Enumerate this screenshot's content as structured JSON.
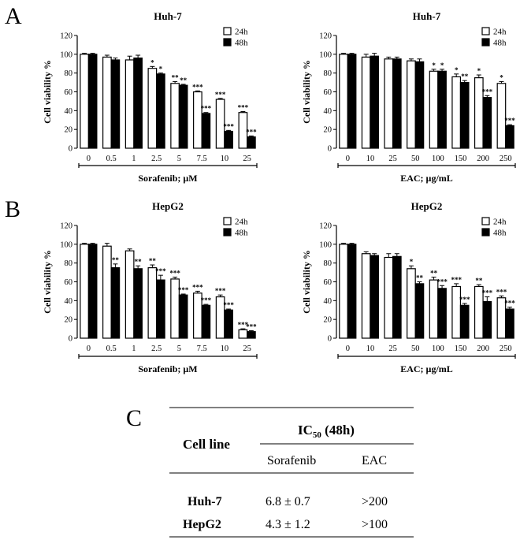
{
  "panels": {
    "A": "A",
    "B": "B",
    "C": "C"
  },
  "colors": {
    "h24": "#ffffff",
    "h48": "#000000",
    "axis": "#000000"
  },
  "chart_data": [
    {
      "id": "a-left",
      "type": "bar",
      "title": "Huh-7",
      "xlabel": "Sorafenib; µM",
      "ylabel": "Cell viability %",
      "ylim": [
        0,
        120
      ],
      "yticks": [
        "0",
        "20",
        "40",
        "60",
        "80",
        "100",
        "120"
      ],
      "legend": [
        "24h",
        "48h"
      ],
      "legend_position": "top-right",
      "categories": [
        "0",
        "0.5",
        "1",
        "2.5",
        "5",
        "7.5",
        "10",
        "25"
      ],
      "series": [
        {
          "name": "24h",
          "values": [
            100,
            97,
            94,
            85,
            69,
            60,
            52,
            38
          ],
          "errors": [
            1,
            2,
            4,
            2,
            2,
            1,
            1,
            1
          ],
          "sig": [
            "",
            "",
            "",
            "*",
            "**",
            "***",
            "***",
            "***"
          ]
        },
        {
          "name": "48h",
          "values": [
            100,
            94,
            96,
            79,
            67,
            37,
            18,
            12
          ],
          "errors": [
            1,
            2,
            3,
            1,
            1,
            1,
            1,
            1
          ],
          "sig": [
            "",
            "",
            "",
            "*",
            "**",
            "***",
            "***",
            "***"
          ]
        }
      ]
    },
    {
      "id": "a-right",
      "type": "bar",
      "title": "Huh-7",
      "xlabel": "EAC; µg/mL",
      "ylabel": "Cell viability %",
      "ylim": [
        0,
        120
      ],
      "yticks": [
        "0",
        "20",
        "40",
        "60",
        "80",
        "100",
        "120"
      ],
      "legend": [
        "24h",
        "48h"
      ],
      "legend_position": "top-right",
      "categories": [
        "0",
        "10",
        "25",
        "50",
        "100",
        "150",
        "200",
        "250"
      ],
      "series": [
        {
          "name": "24h",
          "values": [
            100,
            97,
            95,
            93,
            82,
            76,
            75,
            69
          ],
          "errors": [
            1,
            3,
            2,
            2,
            2,
            3,
            3,
            2
          ],
          "sig": [
            "",
            "",
            "",
            "",
            "*",
            "*",
            "*",
            "*"
          ]
        },
        {
          "name": "48h",
          "values": [
            100,
            98,
            95,
            92,
            82,
            70,
            54,
            24
          ],
          "errors": [
            1,
            3,
            2,
            3,
            2,
            2,
            2,
            1
          ],
          "sig": [
            "",
            "",
            "",
            "",
            "*",
            "**",
            "***",
            "***"
          ]
        }
      ]
    },
    {
      "id": "b-left",
      "type": "bar",
      "title": "HepG2",
      "xlabel": "Sorafenib; µM",
      "ylabel": "Cell viability %",
      "ylim": [
        0,
        120
      ],
      "yticks": [
        "0",
        "20",
        "40",
        "60",
        "80",
        "100",
        "120"
      ],
      "legend": [
        "24h",
        "48h"
      ],
      "legend_position": "top-right",
      "categories": [
        "0",
        "0.5",
        "1",
        "2.5",
        "5",
        "7.5",
        "10",
        "25"
      ],
      "series": [
        {
          "name": "24h",
          "values": [
            100,
            98,
            93,
            75,
            63,
            48,
            44,
            9
          ],
          "errors": [
            1,
            3,
            2,
            3,
            2,
            2,
            2,
            1
          ],
          "sig": [
            "",
            "",
            "",
            "**",
            "***",
            "***",
            "***",
            "***"
          ]
        },
        {
          "name": "48h",
          "values": [
            100,
            75,
            74,
            62,
            46,
            35,
            30,
            7
          ],
          "errors": [
            1,
            4,
            3,
            5,
            1,
            1,
            1,
            1
          ],
          "sig": [
            "",
            "**",
            "**",
            "***",
            "***",
            "***",
            "***",
            "***"
          ]
        }
      ]
    },
    {
      "id": "b-right",
      "type": "bar",
      "title": "HepG2",
      "xlabel": "EAC; µg/mL",
      "ylabel": "Cell viability %",
      "ylim": [
        0,
        120
      ],
      "yticks": [
        "0",
        "20",
        "40",
        "60",
        "80",
        "100",
        "120"
      ],
      "legend": [
        "24h",
        "48h"
      ],
      "legend_position": "top-right",
      "categories": [
        "0",
        "10",
        "25",
        "50",
        "100",
        "150",
        "200",
        "250"
      ],
      "series": [
        {
          "name": "24h",
          "values": [
            100,
            90,
            86,
            74,
            62,
            55,
            55,
            43
          ],
          "errors": [
            1,
            2,
            4,
            3,
            3,
            3,
            2,
            2
          ],
          "sig": [
            "",
            "",
            "",
            "*",
            "**",
            "***",
            "**",
            "***"
          ]
        },
        {
          "name": "48h",
          "values": [
            100,
            88,
            87,
            58,
            53,
            35,
            39,
            31
          ],
          "errors": [
            1,
            2,
            3,
            2,
            3,
            2,
            5,
            2
          ],
          "sig": [
            "",
            "",
            "",
            "**",
            "***",
            "***",
            "***",
            "***"
          ]
        }
      ]
    }
  ],
  "table": {
    "col_cell_line": "Cell line",
    "group_header_main": "IC",
    "group_header_sub": "50",
    "group_header_rest": " (48h)",
    "sub_headers": [
      "Sorafenib",
      "EAC"
    ],
    "rows": [
      {
        "cell_line": "Huh-7",
        "sorafenib": "6.8 ± 0.7",
        "eac": ">200"
      },
      {
        "cell_line": "HepG2",
        "sorafenib": "4.3 ± 1.2",
        "eac": ">100"
      }
    ]
  }
}
